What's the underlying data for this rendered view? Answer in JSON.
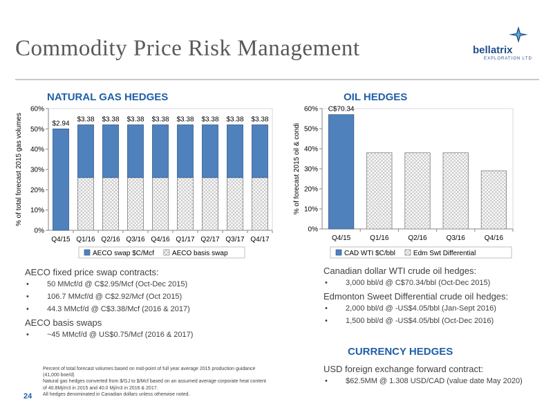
{
  "title": "Commodity Price Risk Management",
  "logo": {
    "name": "bellatrix",
    "sub": "EXPLORATION LTD",
    "icon": "bellatrix-star-logo"
  },
  "page_number": "24",
  "colors": {
    "blue": "#4f81bd",
    "heading": "#1f5fa6",
    "hatch": "#bfbfbf"
  },
  "sections": {
    "gas_title": "NATURAL GAS HEDGES",
    "oil_title": "OIL HEDGES",
    "currency_title": "CURRENCY HEDGES"
  },
  "chart_data": [
    {
      "type": "bar",
      "stacked": true,
      "categories": [
        "Q4/15",
        "Q1/16",
        "Q2/16",
        "Q3/16",
        "Q4/16",
        "Q1/17",
        "Q2/17",
        "Q3/17",
        "Q4/17"
      ],
      "series": [
        {
          "name": "AECO swap $C/Mcf",
          "style": "solid",
          "values": [
            50,
            26,
            26,
            26,
            26,
            26,
            26,
            26,
            26
          ]
        },
        {
          "name": "AECO basis swap",
          "style": "hatch",
          "values": [
            0,
            26,
            26,
            26,
            26,
            26,
            26,
            26,
            26
          ]
        }
      ],
      "data_labels": [
        "$2.94",
        "$3.38",
        "$3.38",
        "$3.38",
        "$3.38",
        "$3.38",
        "$3.38",
        "$3.38",
        "$3.38"
      ],
      "ylabel": "% of total forecast 2015 gas volumes",
      "xlabel": "",
      "ylim": [
        0,
        60
      ],
      "yticks": [
        "0%",
        "10%",
        "20%",
        "30%",
        "40%",
        "50%",
        "60%"
      ],
      "grid": false,
      "legend": "bottom"
    },
    {
      "type": "bar",
      "stacked": false,
      "categories": [
        "Q4/15",
        "Q1/16",
        "Q2/16",
        "Q3/16",
        "Q4/16"
      ],
      "series": [
        {
          "name": "CAD WTI $C/bbl",
          "style": "solid",
          "values": [
            57,
            0,
            0,
            0,
            0
          ]
        },
        {
          "name": "Edm Swt Differential",
          "style": "hatch",
          "values": [
            0,
            38,
            38,
            38,
            29
          ]
        }
      ],
      "data_labels": [
        "C$70.34",
        "",
        "",
        "",
        ""
      ],
      "ylabel": "% of forecast 2015 oil & condi",
      "xlabel": "",
      "ylim": [
        0,
        60
      ],
      "yticks": [
        "0%",
        "10%",
        "20%",
        "30%",
        "40%",
        "50%",
        "60%"
      ],
      "grid": false,
      "legend": "bottom"
    }
  ],
  "gas_text": {
    "head1": "AECO fixed price swap contracts:",
    "items1": [
      "50 MMcf/d @ C$2.95/Mcf (Oct-Dec 2015)",
      "106.7 MMcf/d @ C$2.92/Mcf (Oct 2015)",
      "44.3 MMcf/d @ C$3.38/Mcf (2016 & 2017)"
    ],
    "head2": "AECO basis swaps",
    "items2": [
      "~45 MMcf/d @ US$0.75/Mcf (2016 & 2017)"
    ]
  },
  "oil_text": {
    "head1": "Canadian dollar WTI crude oil hedges:",
    "items1": [
      "3,000 bbl/d @ C$70.34/bbl (Oct-Dec 2015)"
    ],
    "head2": "Edmonton Sweet Differential crude oil hedges:",
    "items2": [
      "2,000 bbl/d @ -US$4.05/bbl (Jan-Sept 2016)",
      "1,500 bbl/d @ -US$4.05/bbl (Oct-Dec 2016)"
    ]
  },
  "currency_text": {
    "head": "USD foreign exchange forward contract:",
    "items": [
      "$62.5MM @ 1.308 USD/CAD (value date May 2020)"
    ]
  },
  "bullet": "•",
  "footnotes": [
    "Percent of total forecast volumes based on mid-point of full year average 2015 production guidance (41,000 boe/d)",
    "Natural gas hedges converted from $/GJ to $/Mcf based on an assumed average corporate heat content of 40.8Mj/m3 in 2015 and 40.0 Mj/m3 in 2016 & 2017.",
    "All hedges denominated in Canadian dollars unless otherwise noted."
  ]
}
